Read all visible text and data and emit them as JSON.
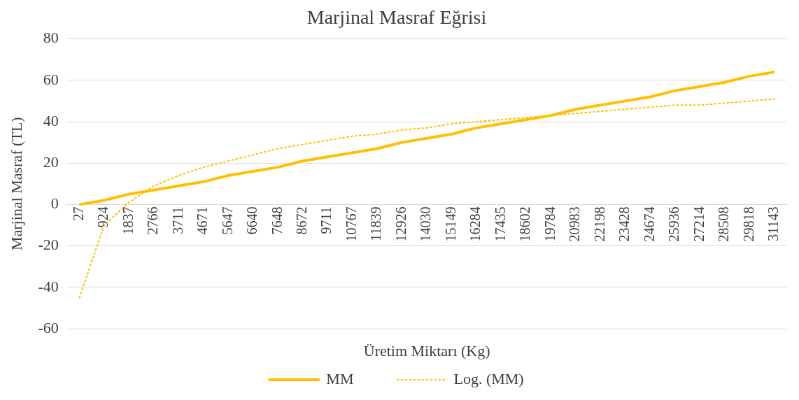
{
  "chart_data": {
    "type": "line",
    "title": "Marjinal Masraf Eğrisi",
    "xlabel": "Üretim Miktarı (Kg)",
    "ylabel": "Marjinal Masraf (TL)",
    "categories": [
      "27",
      "924",
      "1837",
      "2766",
      "3711",
      "4671",
      "5647",
      "6640",
      "7648",
      "8672",
      "9711",
      "10767",
      "11839",
      "12926",
      "14030",
      "15149",
      "16284",
      "17435",
      "18602",
      "19784",
      "20983",
      "22198",
      "23428",
      "24674",
      "25936",
      "27214",
      "28508",
      "29818",
      "31143"
    ],
    "series": [
      {
        "name": "MM",
        "color": "#ffc000",
        "line_style": "solid",
        "values": [
          0,
          2,
          5,
          7,
          9,
          11,
          14,
          16,
          18,
          21,
          23,
          25,
          27,
          30,
          32,
          34,
          37,
          39,
          41,
          43,
          46,
          48,
          50,
          52,
          55,
          57,
          59,
          62,
          64
        ]
      },
      {
        "name": "Log. (MM)",
        "color": "#ffc000",
        "line_style": "dotted",
        "values": [
          -45,
          -10,
          1,
          9,
          14,
          18,
          21,
          24,
          27,
          29,
          31,
          33,
          34,
          36,
          37,
          39,
          40,
          41,
          42,
          43,
          44,
          45,
          46,
          47,
          48,
          48,
          49,
          50,
          51
        ]
      }
    ],
    "ylim": [
      -60,
      80
    ],
    "yticks": [
      -60,
      -40,
      -20,
      0,
      20,
      40,
      60,
      80
    ],
    "grid": "y",
    "legend": "bottom",
    "marker": "none"
  }
}
